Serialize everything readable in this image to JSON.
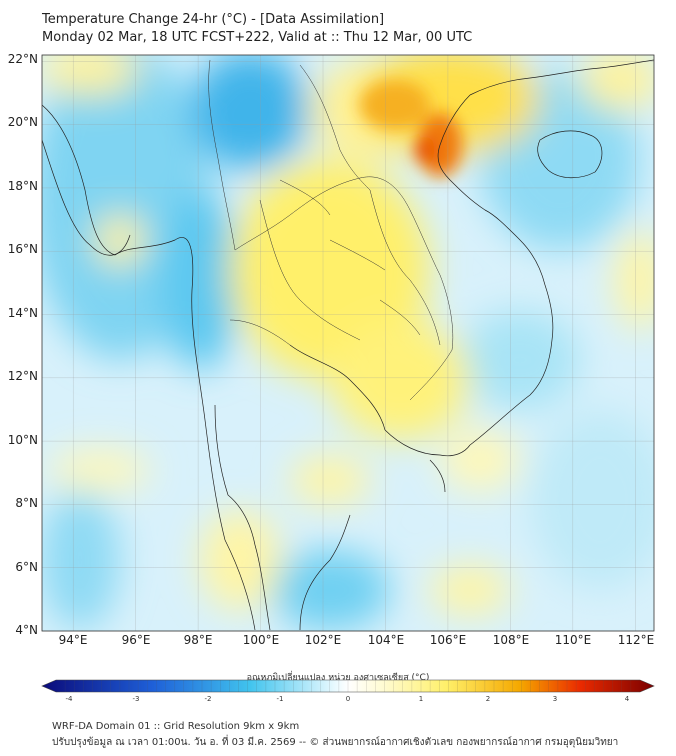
{
  "title": {
    "line1": "Temperature Change 24-hr (°C) - [Data Assimilation]",
    "line2": "Monday 02 Mar, 18 UTC FCST+222, Valid at :: Thu 12 Mar, 00 UTC"
  },
  "map": {
    "lat_labels": [
      "22°N",
      "20°N",
      "18°N",
      "16°N",
      "14°N",
      "12°N",
      "10°N",
      "8°N",
      "6°N",
      "4°N"
    ],
    "lon_labels": [
      "94°E",
      "96°E",
      "98°E",
      "100°E",
      "102°E",
      "104°E",
      "106°E",
      "108°E",
      "110°E",
      "112°E"
    ],
    "lat_range": [
      4,
      22.2
    ],
    "lon_range": [
      93,
      112.6
    ]
  },
  "colorbar": {
    "label": "อุณหภูมิเปลี่ยนแปลง หน่วย องศาเซลเซียส (°C)",
    "ticks": [
      "-4",
      "-3",
      "-2",
      "-1",
      "0",
      "1",
      "2",
      "3",
      "4"
    ],
    "range": [
      -4,
      4
    ],
    "colors": {
      "min": "#0b0b7a",
      "cold": "#1e5fd8",
      "cool": "#41c4ee",
      "neutral": "#ffffff",
      "warm": "#fff06a",
      "hot": "#f5a800",
      "max": "#7a0000"
    }
  },
  "footer": {
    "line1": "WRF-DA Domain 01 :: Grid Resolution 9km x 9km",
    "line2": "ปรับปรุงข้อมูล ณ เวลา 01:00น. วัน อ. ที่ 03 มี.ค. 2569 -- © ส่วนพยากรณ์อากาศเชิงตัวเลข กองพยากรณ์อากาศ กรมอุตุนิยมวิทยา"
  }
}
